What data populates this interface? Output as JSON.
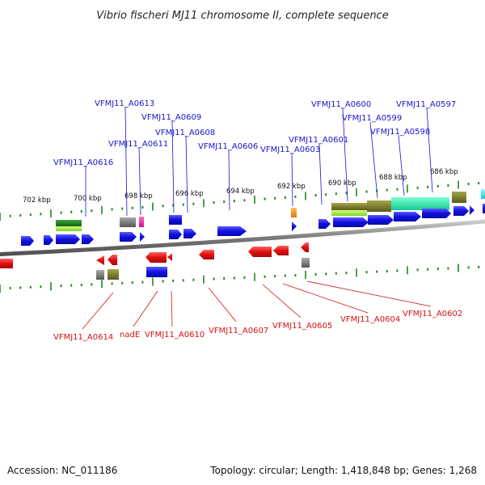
{
  "title": "Vibrio fischeri MJ11 chromosome II, complete sequence",
  "footer": {
    "accession": "Accession: NC_011186",
    "summary": "Topology: circular; Length: 1,418,848 bp; Genes: 1,268"
  },
  "ticks": [
    "702 kbp",
    "700 kbp",
    "698 kbp",
    "696 kbp",
    "694 kbp",
    "692 kbp",
    "690 kbp",
    "688 kbp",
    "686 kbp"
  ],
  "forward_labels": [
    "VFMJ11_A0616",
    "VFMJ11_A0613",
    "VFMJ11_A0611",
    "VFMJ11_A0609",
    "VFMJ11_A0608",
    "VFMJ11_A0606",
    "VFMJ11_A0603",
    "VFMJ11_A0601",
    "VFMJ11_A0600",
    "VFMJ11_A0599",
    "VFMJ11_A0598",
    "VFMJ11_A0597"
  ],
  "reverse_labels": [
    "VFMJ11_A0614",
    "nadE",
    "VFMJ11_A0610",
    "VFMJ11_A0607",
    "VFMJ11_A0605",
    "VFMJ11_A0604",
    "VFMJ11_A0602"
  ],
  "colors": {
    "forward": "#1414e6",
    "reverse": "#e61414",
    "backbone": "#888888",
    "tick": "#1a8a1a"
  }
}
